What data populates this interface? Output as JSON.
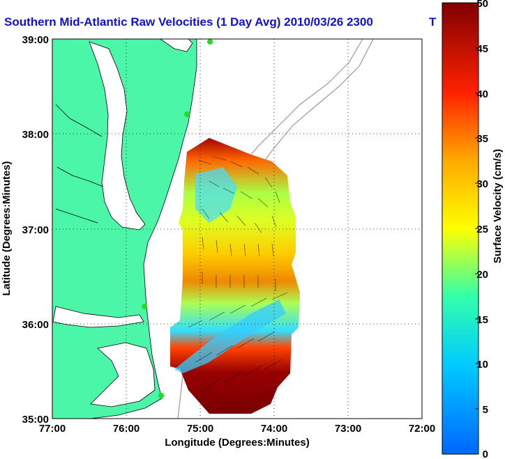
{
  "title": "Southern Mid-Atlantic Raw Velocities (1 Day Avg) 2010/03/26 2300",
  "title_tail": "T",
  "x_axis": {
    "label": "Longitude (Degrees:Minutes)",
    "ticks": [
      "77:00",
      "76:00",
      "75:00",
      "74:00",
      "73:00",
      "72:00"
    ]
  },
  "y_axis": {
    "label": "Latitude (Degrees:Minutes)",
    "ticks": [
      "39:00",
      "38:00",
      "37:00",
      "36:00",
      "35:00"
    ]
  },
  "colorbar": {
    "label": "Surface Velocity (cm/s)",
    "ticks": [
      "50",
      "45",
      "40",
      "35",
      "30",
      "25",
      "20",
      "15",
      "10",
      "5",
      "0"
    ],
    "range": [
      0,
      50
    ],
    "colors": [
      "#0000ff",
      "#00ffff",
      "#ffff00",
      "#ff8000",
      "#ff0000",
      "#800000"
    ]
  },
  "map": {
    "land_color": "#4cf6a8",
    "coastline_color": "#000000",
    "bathymetry_color": "#9a9a9a",
    "station_color": "#22dd22",
    "grid": "dotted"
  }
}
